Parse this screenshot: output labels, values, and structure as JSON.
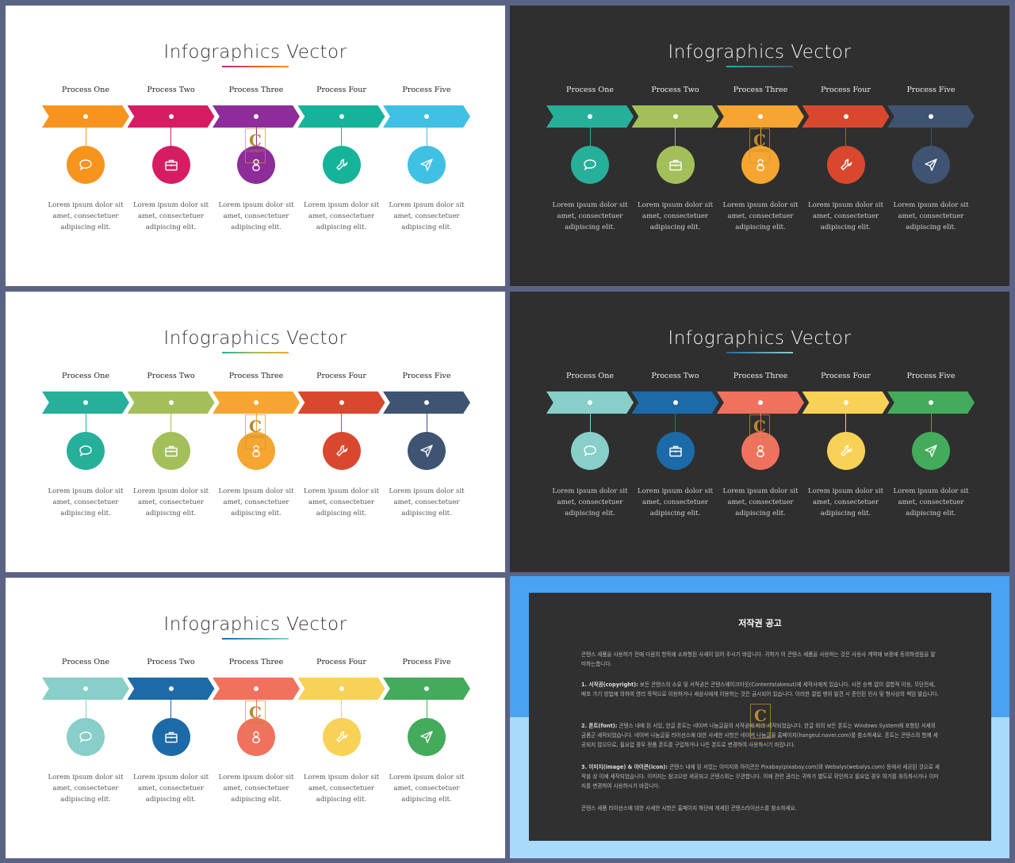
{
  "slides": [
    {
      "theme": "light",
      "title": "Infographics Vector",
      "underline": [
        "#9b2fa0",
        "#ee5a24",
        "#f7941d"
      ],
      "colors": [
        "#f7941d",
        "#d61d64",
        "#8e2c9a",
        "#14b39a",
        "#3fc1e4"
      ]
    },
    {
      "theme": "dark",
      "title": "Infographics Vector",
      "underline": [
        "#26b0a0",
        "#3e5a74"
      ],
      "colors": [
        "#26b09b",
        "#a2bf5a",
        "#f6a530",
        "#d9482e",
        "#3e5472"
      ]
    },
    {
      "theme": "light",
      "title": "Infographics Vector",
      "underline": [
        "#26b09b",
        "#a2bf5a",
        "#f6a530"
      ],
      "colors": [
        "#26b09b",
        "#a2bf5a",
        "#f6a530",
        "#d9482e",
        "#3e5472"
      ]
    },
    {
      "theme": "dark",
      "title": "Infographics Vector",
      "underline": [
        "#1c6aa8",
        "#8ad1cb"
      ],
      "colors": [
        "#87cfc8",
        "#1c6aa8",
        "#f1715f",
        "#f8d257",
        "#43ab5b"
      ]
    },
    {
      "theme": "light",
      "title": "Infographics Vector",
      "underline": [
        "#1c6aa8",
        "#87cfc8"
      ],
      "colors": [
        "#87cfc8",
        "#1c6aa8",
        "#f1715f",
        "#f8d257",
        "#43ab5b"
      ]
    }
  ],
  "processes": [
    "Process One",
    "Process Two",
    "Process Three",
    "Process Four",
    "Process Five"
  ],
  "icons": [
    "speech-bubble-icon",
    "briefcase-icon",
    "person-icon",
    "wrench-icon",
    "paper-plane-icon"
  ],
  "description_lines": [
    "Lorem ipsum dolor sit",
    "amet, consectetuer",
    "adipiscing  elit."
  ],
  "watermark": {
    "letter": "C",
    "text": "CONTENTS"
  },
  "notice": {
    "title": "저작권 공고",
    "intro": "콘텐스 세품을 사용하기 전에 다음의 항목에 소화형된 사세이 읽어 주시기 바랍니다. 귀하가 이 콘텐스 세품을 사용하는 것은 사용사 계약에 보증에 동의하셨음을 말미하는합니다.",
    "p1_head": "1. 서작권(copyright):",
    "p1_body": " 보든 콘텐스의 소유 및 서작권은 콘텐스웨이크아웃(Contentstakeout)에 세작사에게 있습니다. 사전 승복 없이 결합적 이용, 무단전세, 배포 가기 방법에 의하여 영리 목적으로 이용하거나 세삼사에게 이용하는 것은 금시되어 있습니다. 이러한 결법 행위 발견 시 준인된 민사 및 형사상의 책임 발습니다.",
    "p2_head": "2. 폰트(font):",
    "p2_body": " 콘텐스 내에 된 서있, 한글 폰트는 네이버 나눔글꼴의 서작권에 따라 세작되었습니다. 한글 외의 보든 폰트는 Windows System에 포함된 서세의 금품군 세작되었습니다. 네이버 나눔글꼴 라이선스에 대한 사세한 사항은 네이버 나눔글꼴 홈페이지(hangeul.naver.com)를 참소하세요. 폰트는 콘텐스의 함께 세공되지 않으므로, 필요업 경우 정품 폰트를 구입하거나 나든 폰트로 변경하여 사용하시기 바랍니다.",
    "p3_head": "3. 이미지(image) & 아이콘(icon):",
    "p3_body": " 콘텐스 내에 된 서있는 이미지와 아이콘은 Pixabay(pixabay.com)와 Webalys(webalys.com) 등에서 세공된 것으로 세작블 상 이에 세작되었습니다. 이미지는 참고으만 세공되고 콘텐스와는 무관합니다. 이에 관련 권리는 귀하가 별도로 확인하고 필요업 경우 여기를 취득하시거나 이미지를 변경하여 사용하시기 바랍니다.",
    "outro": "콘텐스 세품 라이선스에 대한 사세한 사항은 홈페이지 하단에 게세된 콘텐스라이선스를 참소하세요."
  }
}
